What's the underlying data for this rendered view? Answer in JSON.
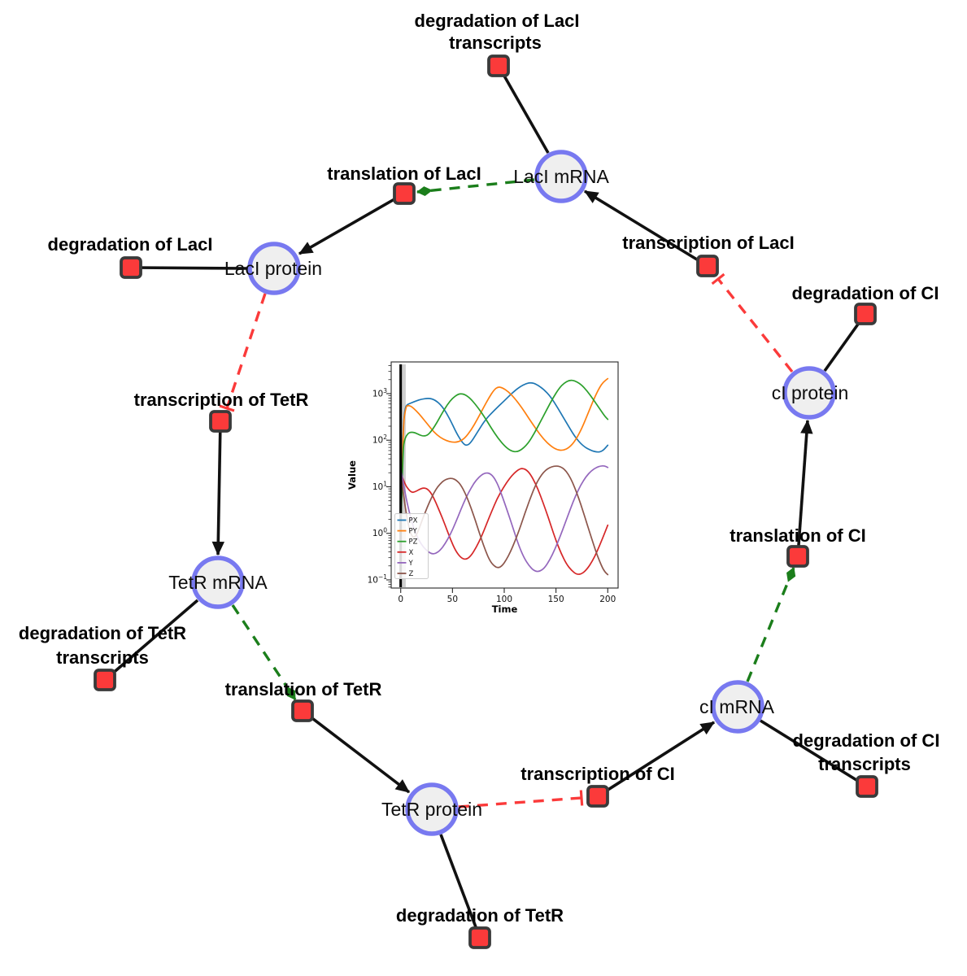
{
  "diagram": {
    "species": {
      "laci_mrna": "LacI mRNA",
      "laci_protein": "LacI protein",
      "tetr_mrna": "TetR mRNA",
      "tetr_protein": "TetR protein",
      "ci_mrna": "cI mRNA",
      "ci_protein": "cI protein"
    },
    "reactions": {
      "deg_laci_transcripts_l1": "degradation of LacI",
      "deg_laci_transcripts_l2": "transcripts",
      "translation_laci": "translation of LacI",
      "transcription_laci": "transcription of LacI",
      "deg_laci": "degradation of LacI",
      "deg_ci": "degradation of CI",
      "transcription_tetr": "transcription of TetR",
      "deg_tetr_transcripts_l1": "degradation of TetR",
      "deg_tetr_transcripts_l2": "transcripts",
      "translation_tetr": "translation of TetR",
      "deg_tetr": "degradation of TetR",
      "transcription_ci": "transcription of CI",
      "deg_ci_transcripts_l1": "degradation of CI",
      "deg_ci_transcripts_l2": "transcripts",
      "translation_ci": "translation of CI"
    },
    "colors": {
      "species_fill": "#efefef",
      "species_border": "#7879f0",
      "reaction_fill": "#fb3a3a",
      "reaction_border": "#3a3a3a",
      "production_edge": "#111111",
      "catalysis_edge": "#1b7e1b",
      "inhibition_edge": "#fb3a3a"
    }
  },
  "chart_data": {
    "type": "line",
    "title": "",
    "xlabel": "Time",
    "ylabel": "Value",
    "yscale": "log",
    "grid": false,
    "legend_position": "lower left",
    "x_ticks": [
      0,
      50,
      100,
      150,
      200
    ],
    "y_tick_exponents": [
      3,
      2,
      1,
      0,
      -1
    ],
    "xlim": [
      -9.2,
      210
    ],
    "ylim_log10": [
      -1.175,
      3.681
    ],
    "vline_x": 0,
    "series": [
      {
        "name": "PX",
        "color": "#1f77b4",
        "points": [
          [
            0,
            0.8
          ],
          [
            2,
            150
          ],
          [
            4,
            480
          ],
          [
            6,
            580
          ],
          [
            10,
            630
          ],
          [
            15,
            700
          ],
          [
            20,
            760
          ],
          [
            27,
            800
          ],
          [
            33,
            740
          ],
          [
            40,
            540
          ],
          [
            47,
            300
          ],
          [
            54,
            140
          ],
          [
            60,
            85
          ],
          [
            64,
            76
          ],
          [
            68,
            90
          ],
          [
            75,
            160
          ],
          [
            82,
            280
          ],
          [
            90,
            430
          ],
          [
            100,
            700
          ],
          [
            108,
            1050
          ],
          [
            115,
            1400
          ],
          [
            121,
            1650
          ],
          [
            126,
            1730
          ],
          [
            131,
            1600
          ],
          [
            138,
            1250
          ],
          [
            145,
            850
          ],
          [
            152,
            480
          ],
          [
            160,
            240
          ],
          [
            168,
            120
          ],
          [
            176,
            75
          ],
          [
            184,
            60
          ],
          [
            190,
            55
          ],
          [
            195,
            58
          ],
          [
            200,
            78
          ]
        ]
      },
      {
        "name": "PY",
        "color": "#ff7f0e",
        "points": [
          [
            0,
            0.8
          ],
          [
            2,
            200
          ],
          [
            5,
            520
          ],
          [
            7,
            560
          ],
          [
            10,
            540
          ],
          [
            15,
            430
          ],
          [
            20,
            320
          ],
          [
            26,
            220
          ],
          [
            32,
            150
          ],
          [
            38,
            115
          ],
          [
            44,
            98
          ],
          [
            50,
            90
          ],
          [
            56,
            92
          ],
          [
            62,
            110
          ],
          [
            68,
            165
          ],
          [
            74,
            280
          ],
          [
            80,
            500
          ],
          [
            85,
            800
          ],
          [
            90,
            1200
          ],
          [
            94,
            1400
          ],
          [
            98,
            1350
          ],
          [
            104,
            1100
          ],
          [
            110,
            800
          ],
          [
            117,
            500
          ],
          [
            124,
            290
          ],
          [
            131,
            170
          ],
          [
            138,
            105
          ],
          [
            145,
            75
          ],
          [
            151,
            62
          ],
          [
            157,
            60
          ],
          [
            163,
            70
          ],
          [
            169,
            100
          ],
          [
            175,
            180
          ],
          [
            181,
            380
          ],
          [
            187,
            800
          ],
          [
            192,
            1350
          ],
          [
            196,
            1800
          ],
          [
            200,
            2100
          ]
        ]
      },
      {
        "name": "PZ",
        "color": "#2ca02c",
        "points": [
          [
            0,
            0.8
          ],
          [
            2,
            60
          ],
          [
            4,
            110
          ],
          [
            7,
            140
          ],
          [
            10,
            150
          ],
          [
            14,
            145
          ],
          [
            18,
            130
          ],
          [
            22,
            122
          ],
          [
            26,
            128
          ],
          [
            30,
            160
          ],
          [
            35,
            240
          ],
          [
            40,
            380
          ],
          [
            45,
            580
          ],
          [
            50,
            800
          ],
          [
            55,
            960
          ],
          [
            58,
            1000
          ],
          [
            62,
            960
          ],
          [
            67,
            800
          ],
          [
            73,
            560
          ],
          [
            80,
            340
          ],
          [
            87,
            190
          ],
          [
            94,
            110
          ],
          [
            101,
            72
          ],
          [
            107,
            58
          ],
          [
            112,
            56
          ],
          [
            117,
            63
          ],
          [
            123,
            85
          ],
          [
            129,
            140
          ],
          [
            135,
            250
          ],
          [
            141,
            450
          ],
          [
            147,
            800
          ],
          [
            153,
            1300
          ],
          [
            158,
            1700
          ],
          [
            163,
            1950
          ],
          [
            168,
            1900
          ],
          [
            174,
            1600
          ],
          [
            180,
            1150
          ],
          [
            186,
            750
          ],
          [
            192,
            480
          ],
          [
            197,
            330
          ],
          [
            200,
            280
          ]
        ]
      },
      {
        "name": "X",
        "color": "#d62728",
        "points": [
          [
            0,
            20
          ],
          [
            2,
            15
          ],
          [
            5,
            10.5
          ],
          [
            8,
            8.5
          ],
          [
            11,
            7.5
          ],
          [
            14,
            7.8
          ],
          [
            18,
            8.8
          ],
          [
            22,
            9.5
          ],
          [
            26,
            9
          ],
          [
            30,
            7
          ],
          [
            34,
            4.6
          ],
          [
            38,
            2.8
          ],
          [
            43,
            1.5
          ],
          [
            48,
            0.75
          ],
          [
            53,
            0.42
          ],
          [
            58,
            0.3
          ],
          [
            63,
            0.27
          ],
          [
            68,
            0.33
          ],
          [
            73,
            0.5
          ],
          [
            78,
            0.85
          ],
          [
            83,
            1.6
          ],
          [
            88,
            3
          ],
          [
            93,
            5.5
          ],
          [
            99,
            9.5
          ],
          [
            105,
            15
          ],
          [
            110,
            20
          ],
          [
            114,
            23.5
          ],
          [
            117,
            25
          ],
          [
            121,
            23.5
          ],
          [
            125,
            19
          ],
          [
            130,
            12
          ],
          [
            135,
            6.5
          ],
          [
            140,
            3.2
          ],
          [
            145,
            1.5
          ],
          [
            150,
            0.7
          ],
          [
            155,
            0.37
          ],
          [
            160,
            0.22
          ],
          [
            165,
            0.16
          ],
          [
            170,
            0.13
          ],
          [
            175,
            0.135
          ],
          [
            180,
            0.17
          ],
          [
            185,
            0.25
          ],
          [
            190,
            0.42
          ],
          [
            195,
            0.78
          ],
          [
            200,
            1.5
          ]
        ]
      },
      {
        "name": "Y",
        "color": "#9467bd",
        "points": [
          [
            0,
            25
          ],
          [
            2,
            14
          ],
          [
            5,
            6
          ],
          [
            8,
            3
          ],
          [
            11,
            1.7
          ],
          [
            14,
            1.05
          ],
          [
            18,
            0.68
          ],
          [
            22,
            0.5
          ],
          [
            26,
            0.41
          ],
          [
            30,
            0.36
          ],
          [
            34,
            0.37
          ],
          [
            38,
            0.43
          ],
          [
            43,
            0.6
          ],
          [
            48,
            0.95
          ],
          [
            53,
            1.7
          ],
          [
            58,
            3.2
          ],
          [
            63,
            5.8
          ],
          [
            68,
            9.5
          ],
          [
            73,
            14
          ],
          [
            78,
            18
          ],
          [
            82,
            20
          ],
          [
            86,
            19.5
          ],
          [
            90,
            16
          ],
          [
            94,
            11
          ],
          [
            99,
            5.5
          ],
          [
            104,
            2.6
          ],
          [
            109,
            1.2
          ],
          [
            114,
            0.55
          ],
          [
            119,
            0.3
          ],
          [
            124,
            0.2
          ],
          [
            129,
            0.155
          ],
          [
            134,
            0.15
          ],
          [
            139,
            0.18
          ],
          [
            144,
            0.27
          ],
          [
            149,
            0.46
          ],
          [
            154,
            0.85
          ],
          [
            159,
            1.7
          ],
          [
            164,
            3.4
          ],
          [
            169,
            6.5
          ],
          [
            174,
            11
          ],
          [
            179,
            16.5
          ],
          [
            184,
            22
          ],
          [
            189,
            26
          ],
          [
            193,
            28
          ],
          [
            197,
            28.2
          ],
          [
            200,
            26
          ]
        ]
      },
      {
        "name": "Z",
        "color": "#8c564b",
        "points": [
          [
            0,
            20
          ],
          [
            2,
            9
          ],
          [
            4,
            4.2
          ],
          [
            6,
            2.2
          ],
          [
            8,
            1.35
          ],
          [
            10,
            0.95
          ],
          [
            12,
            0.82
          ],
          [
            14,
            0.85
          ],
          [
            16,
            1.0
          ],
          [
            19,
            1.5
          ],
          [
            22,
            2.3
          ],
          [
            26,
            3.8
          ],
          [
            30,
            6
          ],
          [
            34,
            8.8
          ],
          [
            38,
            11.5
          ],
          [
            42,
            13.8
          ],
          [
            46,
            15
          ],
          [
            50,
            15.2
          ],
          [
            54,
            13.8
          ],
          [
            58,
            11
          ],
          [
            62,
            7.5
          ],
          [
            66,
            4.6
          ],
          [
            70,
            2.6
          ],
          [
            74,
            1.4
          ],
          [
            78,
            0.75
          ],
          [
            82,
            0.42
          ],
          [
            86,
            0.26
          ],
          [
            90,
            0.2
          ],
          [
            94,
            0.18
          ],
          [
            98,
            0.2
          ],
          [
            102,
            0.27
          ],
          [
            106,
            0.4
          ],
          [
            110,
            0.65
          ],
          [
            114,
            1.1
          ],
          [
            118,
            2
          ],
          [
            122,
            3.6
          ],
          [
            126,
            6.3
          ],
          [
            130,
            10.5
          ],
          [
            134,
            15.5
          ],
          [
            138,
            20.5
          ],
          [
            142,
            24.5
          ],
          [
            146,
            27
          ],
          [
            150,
            28
          ],
          [
            154,
            27.2
          ],
          [
            158,
            24
          ],
          [
            162,
            18.5
          ],
          [
            166,
            12.5
          ],
          [
            170,
            7.5
          ],
          [
            174,
            4.2
          ],
          [
            178,
            2.2
          ],
          [
            182,
            1.15
          ],
          [
            186,
            0.6
          ],
          [
            190,
            0.33
          ],
          [
            194,
            0.2
          ],
          [
            197,
            0.15
          ],
          [
            200,
            0.13
          ]
        ]
      }
    ]
  }
}
